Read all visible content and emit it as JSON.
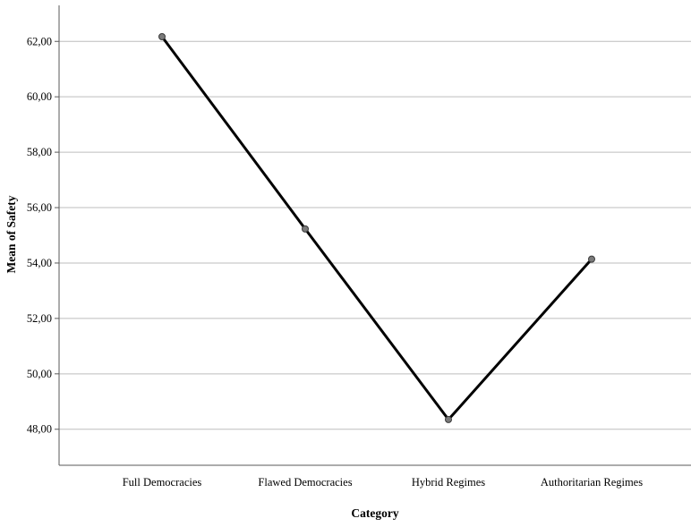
{
  "chart_data": {
    "type": "line",
    "title": "",
    "xlabel": "Category",
    "ylabel": "Mean of Safety",
    "categories": [
      "Full Democracies",
      "Flawed Democracies",
      "Hybrid Regimes",
      "Authoritarian Regimes"
    ],
    "series": [
      {
        "values": [
          62.17,
          55.23,
          48.35,
          54.14
        ]
      }
    ],
    "y_ticks": [
      48,
      50,
      52,
      54,
      56,
      58,
      60,
      62
    ],
    "y_tick_labels": [
      "48,00",
      "50,00",
      "52,00",
      "54,00",
      "56,00",
      "58,00",
      "60,00",
      "62,00"
    ],
    "ylim": [
      46.7,
      63.3
    ],
    "grid": "horizontal",
    "colors": {
      "line": "#000000",
      "marker": "#7a7a7a",
      "grid": "#bdbdbd",
      "axis": "#5a5a5a"
    }
  }
}
